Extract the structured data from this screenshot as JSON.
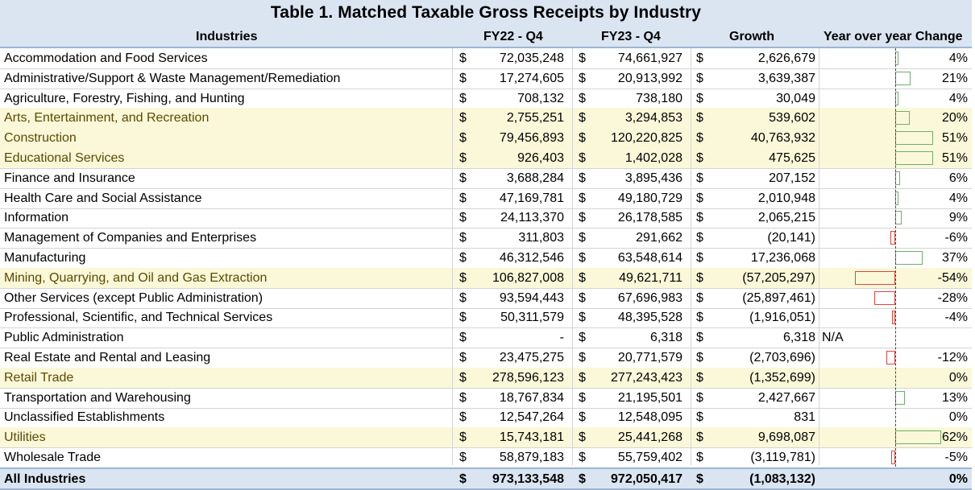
{
  "title": "Table 1. Matched Taxable Gross Receipts by Industry",
  "headers": {
    "industries": "Industries",
    "fy22": "FY22 - Q4",
    "fy23": "FY23 - Q4",
    "growth": "Growth",
    "yoy": "Year over year Change"
  },
  "currency_symbol": "$",
  "colors": {
    "header_bg": "#dae5f1",
    "highlight_bg": "#fbf8d9",
    "positive_bar": "#70ad6f",
    "negative_bar": "#e0463c"
  },
  "rows": [
    {
      "name": "Accommodation and Food Services",
      "fy22": "72,035,248",
      "fy23": "74,661,927",
      "growth": "2,626,679",
      "pct": "4%",
      "pct_value": 4,
      "highlight": false
    },
    {
      "name": "Administrative/Support & Waste Management/Remediation",
      "fy22": "17,274,605",
      "fy23": "20,913,992",
      "growth": "3,639,387",
      "pct": "21%",
      "pct_value": 21,
      "highlight": false
    },
    {
      "name": "Agriculture, Forestry, Fishing, and Hunting",
      "fy22": "708,132",
      "fy23": "738,180",
      "growth": "30,049",
      "pct": "4%",
      "pct_value": 4,
      "highlight": false
    },
    {
      "name": "Arts, Entertainment, and Recreation",
      "fy22": "2,755,251",
      "fy23": "3,294,853",
      "growth": "539,602",
      "pct": "20%",
      "pct_value": 20,
      "highlight": true
    },
    {
      "name": "Construction",
      "fy22": "79,456,893",
      "fy23": "120,220,825",
      "growth": "40,763,932",
      "pct": "51%",
      "pct_value": 51,
      "highlight": true
    },
    {
      "name": "Educational Services",
      "fy22": "926,403",
      "fy23": "1,402,028",
      "growth": "475,625",
      "pct": "51%",
      "pct_value": 51,
      "highlight": true
    },
    {
      "name": "Finance and Insurance",
      "fy22": "3,688,284",
      "fy23": "3,895,436",
      "growth": "207,152",
      "pct": "6%",
      "pct_value": 6,
      "highlight": false
    },
    {
      "name": "Health Care and Social Assistance",
      "fy22": "47,169,781",
      "fy23": "49,180,729",
      "growth": "2,010,948",
      "pct": "4%",
      "pct_value": 4,
      "highlight": false
    },
    {
      "name": "Information",
      "fy22": "24,113,370",
      "fy23": "26,178,585",
      "growth": "2,065,215",
      "pct": "9%",
      "pct_value": 9,
      "highlight": false
    },
    {
      "name": "Management of Companies and Enterprises",
      "fy22": "311,803",
      "fy23": "291,662",
      "growth": "(20,141)",
      "pct": "-6%",
      "pct_value": -6,
      "highlight": false
    },
    {
      "name": "Manufacturing",
      "fy22": "46,312,546",
      "fy23": "63,548,614",
      "growth": "17,236,068",
      "pct": "37%",
      "pct_value": 37,
      "highlight": false
    },
    {
      "name": "Mining, Quarrying, and Oil and Gas Extraction",
      "fy22": "106,827,008",
      "fy23": "49,621,711",
      "growth": "(57,205,297)",
      "pct": "-54%",
      "pct_value": -54,
      "highlight": true
    },
    {
      "name": "Other Services (except Public Administration)",
      "fy22": "93,594,443",
      "fy23": "67,696,983",
      "growth": "(25,897,461)",
      "pct": "-28%",
      "pct_value": -28,
      "highlight": false
    },
    {
      "name": "Professional, Scientific, and Technical Services",
      "fy22": "50,311,579",
      "fy23": "48,395,528",
      "growth": "(1,916,051)",
      "pct": "-4%",
      "pct_value": -4,
      "highlight": false
    },
    {
      "name": "Public Administration",
      "fy22": "-",
      "fy23": "6,318",
      "growth": "6,318",
      "pct": "",
      "pct_value": null,
      "na": "N/A",
      "highlight": false
    },
    {
      "name": "Real Estate and Rental and Leasing",
      "fy22": "23,475,275",
      "fy23": "20,771,579",
      "growth": "(2,703,696)",
      "pct": "-12%",
      "pct_value": -12,
      "highlight": false
    },
    {
      "name": "Retail Trade",
      "fy22": "278,596,123",
      "fy23": "277,243,423",
      "growth": "(1,352,699)",
      "pct": "0%",
      "pct_value": 0,
      "highlight": true
    },
    {
      "name": "Transportation and Warehousing",
      "fy22": "18,767,834",
      "fy23": "21,195,501",
      "growth": "2,427,667",
      "pct": "13%",
      "pct_value": 13,
      "highlight": false
    },
    {
      "name": "Unclassified Establishments",
      "fy22": "12,547,264",
      "fy23": "12,548,095",
      "growth": "831",
      "pct": "0%",
      "pct_value": 0,
      "highlight": false
    },
    {
      "name": "Utilities",
      "fy22": "15,743,181",
      "fy23": "25,441,268",
      "growth": "9,698,087",
      "pct": "62%",
      "pct_value": 62,
      "highlight": true
    },
    {
      "name": "Wholesale Trade",
      "fy22": "58,879,183",
      "fy23": "55,759,402",
      "growth": "(3,119,781)",
      "pct": "-5%",
      "pct_value": -5,
      "highlight": false
    }
  ],
  "total": {
    "name": "All Industries",
    "fy22": "973,133,548",
    "fy23": "972,050,417",
    "growth": "(1,083,132)",
    "pct": "0%",
    "pct_value": 0
  }
}
